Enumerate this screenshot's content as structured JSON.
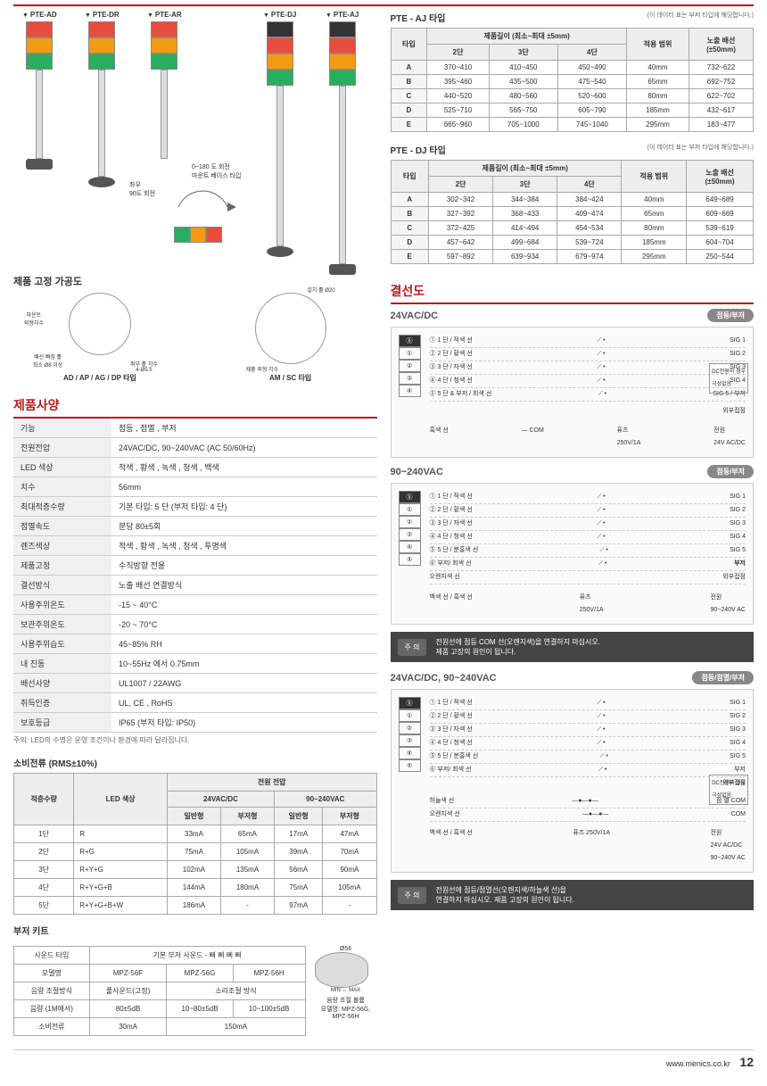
{
  "towers": {
    "labels": [
      "PTE-AD",
      "PTE-DR",
      "PTE-AR",
      "PTE-DJ",
      "PTE-AJ"
    ],
    "rotation_note1": "좌우\n90도 회전",
    "rotation_note2": "0~180 도 회전\n마운트 베이스 타입"
  },
  "dim_tables": {
    "aj": {
      "title": "PTE - AJ 타입",
      "subtitle": "(이 데이터 표는 부저 타입에 해당합니다.)",
      "header_group": "제품길이 (최소~최대 ±5mm)",
      "col_type": "타입",
      "cols": [
        "2단",
        "3단",
        "4단"
      ],
      "col_range": "적용 범위",
      "col_wire": "노출 배선\n(±50mm)",
      "rows": [
        {
          "t": "A",
          "c": [
            "370~410",
            "410~450",
            "450~490"
          ],
          "r": "40mm",
          "w": "732~622"
        },
        {
          "t": "B",
          "c": [
            "395~460",
            "435~500",
            "475~540"
          ],
          "r": "65mm",
          "w": "692~752"
        },
        {
          "t": "C",
          "c": [
            "440~520",
            "480~560",
            "520~600"
          ],
          "r": "80mm",
          "w": "622~702"
        },
        {
          "t": "D",
          "c": [
            "525~710",
            "565~750",
            "605~790"
          ],
          "r": "185mm",
          "w": "432~617"
        },
        {
          "t": "E",
          "c": [
            "665~960",
            "705~1000",
            "745~1040"
          ],
          "r": "295mm",
          "w": "183~477"
        }
      ]
    },
    "dj": {
      "title": "PTE - DJ 타입",
      "subtitle": "(이 데이터 표는 부저 타입에 해당합니다.)",
      "rows": [
        {
          "t": "A",
          "c": [
            "302~342",
            "344~384",
            "384~424"
          ],
          "r": "40mm",
          "w": "649~689"
        },
        {
          "t": "B",
          "c": [
            "327~392",
            "368~433",
            "409~474"
          ],
          "r": "65mm",
          "w": "609~669"
        },
        {
          "t": "C",
          "c": [
            "372~425",
            "414~494",
            "454~534"
          ],
          "r": "80mm",
          "w": "539~619"
        },
        {
          "t": "D",
          "c": [
            "457~642",
            "499~684",
            "539~724"
          ],
          "r": "185mm",
          "w": "604~704"
        },
        {
          "t": "E",
          "c": [
            "597~892",
            "639~934",
            "679~974"
          ],
          "r": "295mm",
          "w": "250~544"
        }
      ]
    }
  },
  "mounting": {
    "heading": "제품 고정 가공도",
    "label1": "AD / AP / AG / DP 타입",
    "label2": "AM / SC 타입",
    "hole_note": "설치 홀 Ø20",
    "mount_note": "마운트\n외형치수",
    "wire_note": "배선 빠짐 홀\n최소 Ø8 이상",
    "bolt_note": "취부 홀 치수\n4-Ø5.5",
    "outer_note": "제품 외형 치수"
  },
  "spec": {
    "heading": "제품사양",
    "rows": [
      {
        "k": "기능",
        "v": "점등 , 점멸 , 부저"
      },
      {
        "k": "전원전압",
        "v": "24VAC/DC, 90~240VAC (AC 50/60Hz)"
      },
      {
        "k": "LED 색상",
        "v": "적색 , 황색 , 녹색 , 청색 , 백색"
      },
      {
        "k": "치수",
        "v": "56mm"
      },
      {
        "k": "최대적층수량",
        "v": "기본 타입: 5 단 (부저 타입: 4 단)"
      },
      {
        "k": "점멸속도",
        "v": "분당 80±5회"
      },
      {
        "k": "렌즈색상",
        "v": "적색 , 황색 , 녹색 , 청색 , 투명색"
      },
      {
        "k": "제품고정",
        "v": "수직방향 전용"
      },
      {
        "k": "결선방식",
        "v": "노출 배선 연결방식"
      },
      {
        "k": "사용주위온도",
        "v": "-15 ~ 40°C"
      },
      {
        "k": "보관주위온도",
        "v": "-20 ~ 70°C"
      },
      {
        "k": "사용주위습도",
        "v": "45~85% RH"
      },
      {
        "k": "내 진동",
        "v": "10~55Hz 에서 0.75mm"
      },
      {
        "k": "배선사양",
        "v": "UL1007 / 22AWG"
      },
      {
        "k": "취득인증",
        "v": "UL, CE , RoHS"
      },
      {
        "k": "보호등급",
        "v": "IP65 (부저 타입: IP50)"
      }
    ],
    "note": "주의: LED의 수명은 운영 조건이나 환경에 따라 달라집니다."
  },
  "current": {
    "heading": "소비전류 (RMS±10%)",
    "col_stack": "적층수량",
    "col_led": "LED 색상",
    "col_volt": "전원 전압",
    "sub1": "24VAC/DC",
    "sub2": "90~240VAC",
    "sub_normal": "일반형",
    "sub_buzzer": "부저형",
    "rows": [
      {
        "s": "1단",
        "l": "R",
        "v": [
          "33mA",
          "65mA",
          "17mA",
          "47mA"
        ]
      },
      {
        "s": "2단",
        "l": "R+G",
        "v": [
          "75mA",
          "105mA",
          "39mA",
          "70mA"
        ]
      },
      {
        "s": "3단",
        "l": "R+Y+G",
        "v": [
          "102mA",
          "135mA",
          "56mA",
          "90mA"
        ]
      },
      {
        "s": "4단",
        "l": "R+Y+G+B",
        "v": [
          "144mA",
          "180mA",
          "75mA",
          "105mA"
        ]
      },
      {
        "s": "5단",
        "l": "R+Y+G+B+W",
        "v": [
          "186mA",
          "-",
          "97mA",
          "-"
        ]
      }
    ]
  },
  "buzzer": {
    "heading": "부저 키트",
    "col1": "사운드 타입",
    "col1v": "기본 부저 사운드 - 삐 삐 삐 삐",
    "col2": "모델명",
    "models": [
      "MPZ-56F",
      "MPZ-56G",
      "MPZ-56H"
    ],
    "col3": "음량 조절방식",
    "adj": [
      "풀사운드(고정)",
      "소리조절 방식"
    ],
    "col4": "음량 (1M에서)",
    "vol": [
      "80±5dB",
      "10~80±5dB",
      "10~100±5dB"
    ],
    "col5": "소비전류",
    "cur": [
      "30mA",
      "150mA"
    ],
    "dim": "Ø56",
    "vol_label": "음량 조절 볼륨",
    "model_label": "모델명: MPZ-56G, MPZ-56H"
  },
  "wiring": {
    "heading": "결선도",
    "sec1": {
      "title": "24VAC/DC",
      "badge": "점등/부저"
    },
    "sec2": {
      "title": "90~240VAC",
      "badge": "점등/부저"
    },
    "sec3": {
      "title": "24VAC/DC, 90~240VAC",
      "badge": "점등/점멸/부저"
    },
    "labels": {
      "sig1": "① 1 단 / 적색 선",
      "out1": "SIG 1",
      "sig2": "② 2 단 / 황색 선",
      "out2": "SIG 2",
      "sig3": "③ 3 단 / 자색 선",
      "out3": "SIG 3",
      "sig4": "④ 4 단 / 청색 선",
      "out4": "SIG 4",
      "sig5": "⑤ 5 단 & 부저 / 회색 선",
      "out5": "SIG 5 / 부저",
      "sig5b": "⑤ 5 단 / 분홍색 선",
      "out5b": "SIG 5",
      "sig6": "⑥ 부저/ 회색 선",
      "out6": "부저",
      "ext": "외부접점",
      "black": "흑색 선",
      "white": "백색 선",
      "orange": "오렌지색 선",
      "sky": "하늘색 선",
      "com": "COM",
      "flash_com": "점 멸 COM",
      "fuse": "퓨즈\n250V/1A",
      "pwr24": "전원\n24V AC/DC",
      "pwr90": "전원\n90~240V AC",
      "pwr_both": "전원\n24V AC/DC\n90~240V AC",
      "dc_note": "DC전원의 경우\n극성없음"
    },
    "warning1": {
      "icon": "주 의",
      "text": "전원선에 점등 COM 선(오렌지색)을 연결하지 마십시오.\n제품 고장의 원인이 됩니다."
    },
    "warning2": {
      "icon": "주 의",
      "text": "전원선에 점등/점멸선(오렌지색/하늘색 선)을\n연결하지 마십시오. 제품 고장의 원인이 됩니다."
    }
  },
  "footer": {
    "url": "www.menics.co.kr",
    "page": "12"
  },
  "colors": {
    "accent": "#b71c1c",
    "red": "#e74c3c",
    "yellow": "#f39c12",
    "green": "#27ae60",
    "grey_bg": "#f0f0f0",
    "border": "#aaa",
    "warning_bg": "#444"
  }
}
